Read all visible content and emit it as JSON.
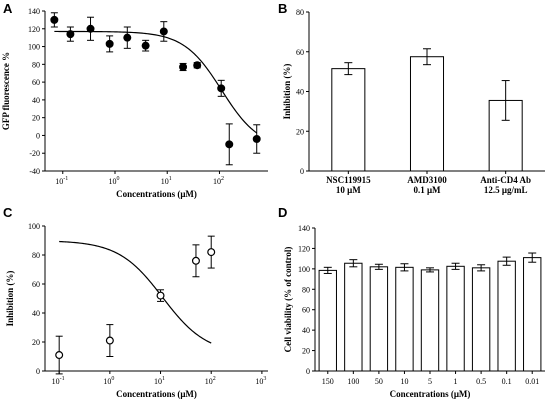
{
  "chart_data": [
    {
      "panel": "A",
      "type": "scatter",
      "xlabel": "Concentrations (μM)",
      "ylabel": "GFP fluorescence %",
      "xscale": "log",
      "xlim": [
        0.0457,
        850
      ],
      "ylim": [
        -40,
        140
      ],
      "yticks": [
        -40,
        -20,
        0,
        20,
        40,
        60,
        80,
        100,
        120,
        140
      ],
      "xticks": [
        {
          "value": 0.1,
          "base": "10",
          "exp": "-1"
        },
        {
          "value": 1,
          "base": "10",
          "exp": "0"
        },
        {
          "value": 10,
          "base": "10",
          "exp": "1"
        },
        {
          "value": 100,
          "base": "10",
          "exp": "2"
        },
        {
          "value": 1000,
          "base": "10",
          "exp": "3"
        }
      ],
      "points": [
        {
          "x": 0.069,
          "y": 130,
          "err": 8
        },
        {
          "x": 0.14,
          "y": 114,
          "err": 8
        },
        {
          "x": 0.34,
          "y": 120,
          "err": 13
        },
        {
          "x": 0.79,
          "y": 103,
          "err": 9
        },
        {
          "x": 1.72,
          "y": 110,
          "err": 12
        },
        {
          "x": 3.86,
          "y": 101,
          "err": 6
        },
        {
          "x": 8.6,
          "y": 117,
          "err": 11
        },
        {
          "x": 20.1,
          "y": 77,
          "err": 4
        },
        {
          "x": 37.5,
          "y": 79,
          "err": 3
        },
        {
          "x": 108,
          "y": 53,
          "err": 9
        },
        {
          "x": 154,
          "y": -10,
          "err": 23
        },
        {
          "x": 517,
          "y": -4,
          "err": 16
        }
      ],
      "fit": {
        "top": 117,
        "bottom": -15,
        "ec50": 110,
        "hill": 1.2
      }
    },
    {
      "panel": "B",
      "type": "bar",
      "xlabel": "",
      "ylabel": "Inhibition (%)",
      "ylim": [
        0,
        80
      ],
      "yticks": [
        0,
        20,
        40,
        60,
        80
      ],
      "bars": [
        {
          "label_line1": "NSC119915",
          "label_line2": "10 μM",
          "value": 51.5,
          "err": 3
        },
        {
          "label_line1": "AMD3100",
          "label_line2": "0.1 μM",
          "value": 57.5,
          "err": 4
        },
        {
          "label_line1": "Anti-CD4 Ab",
          "label_line2": "12.5 μg/mL",
          "value": 35.5,
          "err": 10
        }
      ]
    },
    {
      "panel": "C",
      "type": "scatter",
      "xlabel": "Concentrations (μM)",
      "ylabel": "Inhibition (%)",
      "xscale": "log",
      "xlim": [
        0.0525,
        1320
      ],
      "ylim": [
        0,
        100
      ],
      "yticks": [
        0,
        20,
        40,
        60,
        80,
        100
      ],
      "xticks": [
        {
          "value": 0.1,
          "base": "10",
          "exp": "-1"
        },
        {
          "value": 1,
          "base": "10",
          "exp": "0"
        },
        {
          "value": 10,
          "base": "10",
          "exp": "1"
        },
        {
          "value": 100,
          "base": "10",
          "exp": "2"
        },
        {
          "value": 1000,
          "base": "10",
          "exp": "3"
        }
      ],
      "points": [
        {
          "x": 0.1,
          "y": 11,
          "err": 13
        },
        {
          "x": 1,
          "y": 21,
          "err": 11
        },
        {
          "x": 10,
          "y": 52,
          "err": 4
        },
        {
          "x": 50,
          "y": 76,
          "err": 11
        },
        {
          "x": 100,
          "y": 82,
          "err": 11
        }
      ],
      "fit": {
        "top": 90,
        "bottom": 11.5,
        "ec50": 11,
        "hill": 1.0
      }
    },
    {
      "panel": "D",
      "type": "bar",
      "xlabel": "Concentrations (μM)",
      "ylabel": "Cell viability (% of control)",
      "ylim": [
        0,
        140
      ],
      "yticks": [
        0,
        20,
        40,
        60,
        80,
        100,
        120,
        140
      ],
      "bars": [
        {
          "label": "150",
          "value": 98.5,
          "err": 3
        },
        {
          "label": "100",
          "value": 105.5,
          "err": 3.5
        },
        {
          "label": "50",
          "value": 102,
          "err": 2.5
        },
        {
          "label": "10",
          "value": 101.5,
          "err": 3.5
        },
        {
          "label": "5",
          "value": 99,
          "err": 2
        },
        {
          "label": "1",
          "value": 102.5,
          "err": 3
        },
        {
          "label": "0.5",
          "value": 101,
          "err": 3
        },
        {
          "label": "0.1",
          "value": 107.5,
          "err": 4
        },
        {
          "label": "0.01",
          "value": 111,
          "err": 4.5
        }
      ]
    }
  ]
}
